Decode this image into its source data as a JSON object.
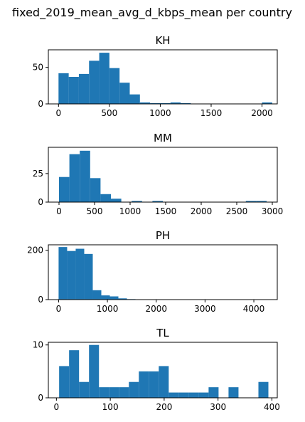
{
  "figure": {
    "title": "fixed_2019_mean_avg_d_kbps_mean per country"
  },
  "chart_data": [
    {
      "type": "bar",
      "title": "KH",
      "bin_width": 100,
      "bins_start": [
        0,
        100,
        200,
        300,
        400,
        500,
        600,
        700,
        800,
        900,
        1000,
        1100,
        1200,
        1300,
        1400,
        1500,
        1600,
        1700,
        1800,
        1900,
        2000
      ],
      "values": [
        42,
        37,
        41,
        59,
        70,
        49,
        29,
        13,
        2,
        1,
        1,
        2,
        1,
        0,
        0,
        0,
        0,
        0,
        0,
        0,
        2
      ],
      "xlim": [
        -100,
        2150
      ],
      "ylim": [
        0,
        74
      ],
      "xticks": [
        0,
        500,
        1000,
        1500,
        2000
      ],
      "yticks": [
        0,
        50
      ],
      "color": "#1f77b4"
    },
    {
      "type": "bar",
      "title": "MM",
      "bin_width": 146,
      "bins_start": [
        0,
        146,
        292,
        438,
        584,
        730,
        876,
        1022,
        1168,
        1314,
        1460,
        1606,
        1752,
        1898,
        2044,
        2190,
        2336,
        2482,
        2628,
        2774
      ],
      "values": [
        22,
        42,
        45,
        21,
        7,
        3,
        0,
        1,
        0,
        1,
        0,
        0,
        0,
        0,
        0,
        0,
        0,
        0,
        1,
        1
      ],
      "xlim": [
        -150,
        3070
      ],
      "ylim": [
        0,
        48
      ],
      "xticks": [
        0,
        500,
        1000,
        1500,
        2000,
        2500,
        3000
      ],
      "yticks": [
        0,
        25
      ],
      "color": "#1f77b4"
    },
    {
      "type": "bar",
      "title": "PH",
      "bin_width": 175,
      "bins_start": [
        0,
        175,
        350,
        525,
        700,
        875,
        1050,
        1225,
        1400,
        1575
      ],
      "values": [
        213,
        197,
        206,
        185,
        38,
        17,
        13,
        5,
        2,
        1
      ],
      "xlim": [
        -210,
        4480
      ],
      "ylim": [
        0,
        222
      ],
      "xticks": [
        0,
        1000,
        2000,
        3000,
        4000
      ],
      "yticks": [
        0,
        200
      ],
      "color": "#1f77b4"
    },
    {
      "type": "bar",
      "title": "TL",
      "bin_width": 18.5,
      "bins_start": [
        5,
        23.5,
        42,
        60.5,
        79,
        97.5,
        116,
        134.5,
        153,
        171.5,
        190,
        208.5,
        227,
        245.5,
        264,
        282.5,
        301,
        319.5,
        338,
        356.5,
        375
      ],
      "values": [
        6,
        9,
        3,
        10,
        2,
        2,
        2,
        3,
        5,
        5,
        6,
        1,
        1,
        1,
        1,
        2,
        0,
        2,
        0,
        0,
        3
      ],
      "xlim": [
        -15,
        410
      ],
      "ylim": [
        0,
        10.5
      ],
      "xticks": [
        0,
        100,
        200,
        300,
        400
      ],
      "yticks": [
        0,
        10
      ],
      "color": "#1f77b4"
    }
  ]
}
